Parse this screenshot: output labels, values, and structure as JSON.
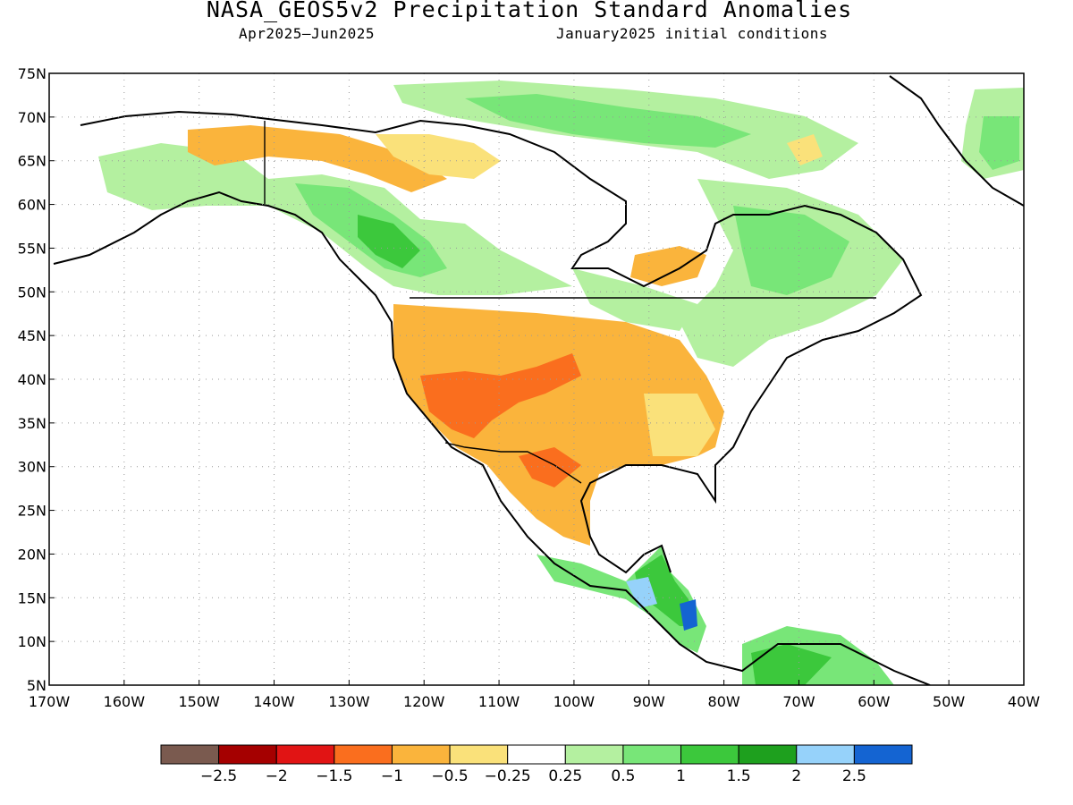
{
  "title": "NASA_GEOS5v2 Precipitation Standard Anomalies",
  "subtitle_period": "Apr2025–Jun2025",
  "subtitle_ic": "January2025 initial conditions",
  "map": {
    "lat_labels": [
      "75N",
      "70N",
      "65N",
      "60N",
      "55N",
      "50N",
      "45N",
      "40N",
      "35N",
      "30N",
      "25N",
      "20N",
      "15N",
      "10N",
      "5N"
    ],
    "lat_values": [
      75,
      70,
      65,
      60,
      55,
      50,
      45,
      40,
      35,
      30,
      25,
      20,
      15,
      10,
      5
    ],
    "lon_labels": [
      "170W",
      "160W",
      "150W",
      "140W",
      "130W",
      "120W",
      "110W",
      "100W",
      "90W",
      "80W",
      "70W",
      "60W",
      "50W",
      "40W"
    ],
    "lon_values": [
      -170,
      -160,
      -150,
      -140,
      -130,
      -120,
      -110,
      -100,
      -90,
      -80,
      -70,
      -60,
      -50,
      -40
    ],
    "lon_range": [
      -170,
      -40
    ],
    "lat_range": [
      5,
      75
    ],
    "grid": "dotted",
    "anomaly_colors": {
      "wet_light": "#b4f0a0",
      "wet": "#78e678",
      "wet_mod": "#3cc83c",
      "wet_strong": "#1ea01e",
      "wet_vstrong": "#96d2fa",
      "wet_extreme": "#1464d2",
      "dry_light": "#fae17a",
      "dry": "#fab43c",
      "dry_mod": "#fa6e1e",
      "dry_strong": "#e11414"
    }
  },
  "colorbar": {
    "colors": [
      "#7a5a4f",
      "#a50000",
      "#e11414",
      "#fa6e1e",
      "#fab43c",
      "#fae17a",
      "#ffffff",
      "#b4f0a0",
      "#78e678",
      "#3cc83c",
      "#1ea01e",
      "#96d2fa",
      "#1464d2"
    ],
    "labels": [
      "−2.5",
      "−2",
      "−1.5",
      "−1",
      "−0.5",
      "−0.25",
      "0.25",
      "0.5",
      "1",
      "1.5",
      "2",
      "2.5"
    ]
  }
}
